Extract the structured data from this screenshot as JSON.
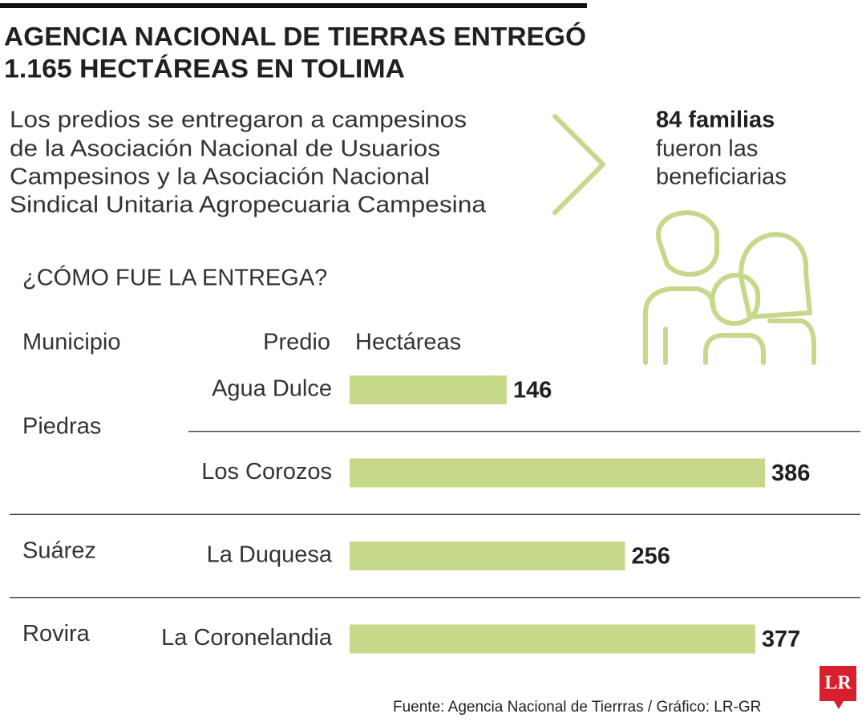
{
  "header": {
    "title_lines": [
      "AGENCIA NACIONAL DE TIERRAS ENTREGÓ",
      "1.165 HECTÁREAS EN TOLIMA"
    ],
    "description_lines": [
      "Los predios se entregaron a campesinos",
      "de la Asociación Nacional de Usuarios",
      "Campesinos y la Asociación Nacional",
      "Sindical Unitaria Agropecuaria Campesina"
    ],
    "highlight": {
      "strong": "84 familias",
      "lines": [
        "fueron las",
        "beneficiarias"
      ]
    }
  },
  "chart_data": {
    "type": "bar",
    "title": "¿CÓMO FUE LA ENTREGA?",
    "columns": [
      "Municipio",
      "Predio",
      "Hectáreas"
    ],
    "color": "#c6d98b",
    "groups": [
      {
        "name": "Piedras",
        "categories": [
          "Agua Dulce",
          "Los Corozos"
        ],
        "values": [
          146,
          386
        ]
      },
      {
        "name": "Suárez",
        "categories": [
          "La Duquesa"
        ],
        "values": [
          256
        ]
      },
      {
        "name": "Rovira",
        "categories": [
          "La Coronelandia"
        ],
        "values": [
          377
        ]
      }
    ]
  },
  "footer": {
    "source": "Fuente: Agencia Nacional de Tierrras / Gráfico: LR-GR",
    "logo": "LR"
  }
}
